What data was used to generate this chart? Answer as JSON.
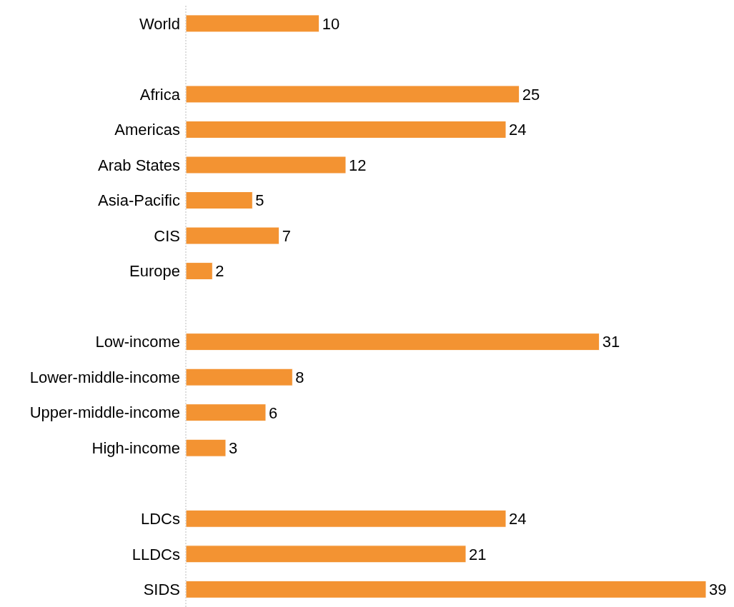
{
  "chart_data": {
    "type": "bar",
    "orientation": "horizontal",
    "categories": [
      "World",
      null,
      "Africa",
      "Americas",
      "Arab States",
      "Asia-Pacific",
      "CIS",
      "Europe",
      null,
      "Low-income",
      "Lower-middle-income",
      "Upper-middle-income",
      "High-income",
      null,
      "LDCs",
      "LLDCs",
      "SIDS"
    ],
    "values": [
      10,
      null,
      25,
      24,
      12,
      5,
      7,
      2,
      null,
      31,
      8,
      6,
      3,
      null,
      24,
      21,
      39
    ],
    "color": "#f39332",
    "data_labels": true
  }
}
